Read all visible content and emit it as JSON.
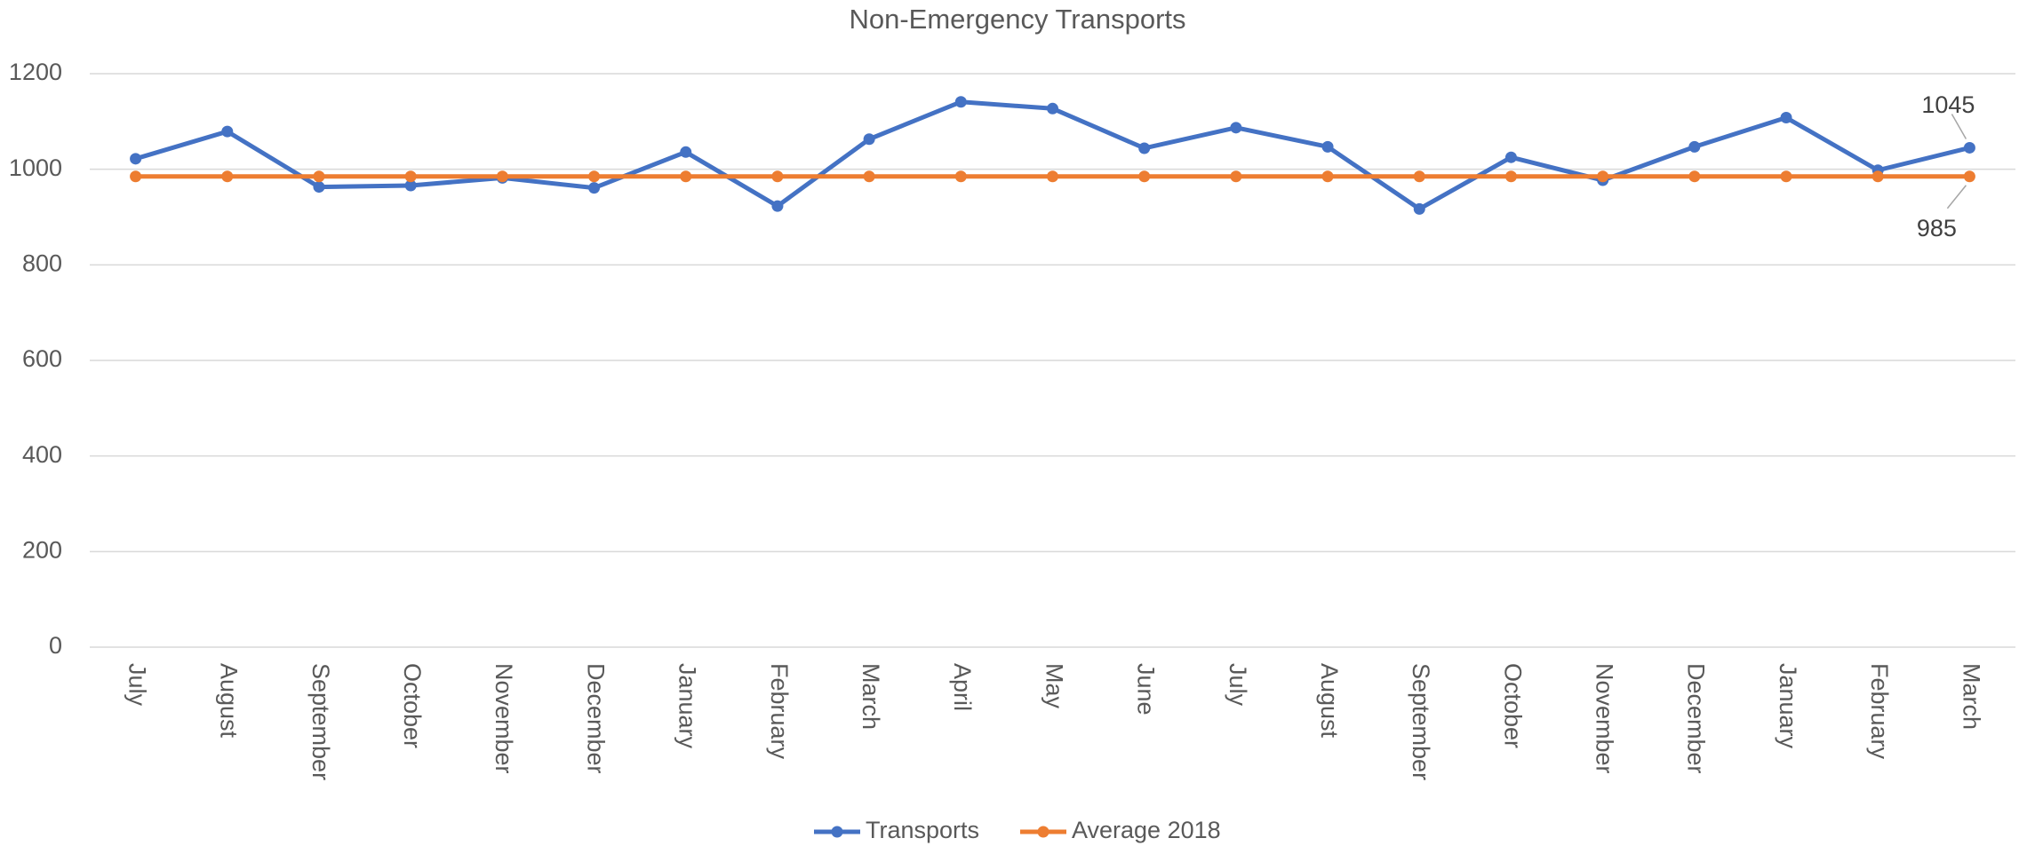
{
  "chart_data": {
    "type": "line",
    "title": "Non-Emergency Transports",
    "categories": [
      "July",
      "August",
      "September",
      "October",
      "November",
      "December",
      "January",
      "February",
      "March",
      "April",
      "May",
      "June",
      "July",
      "August",
      "September",
      "October",
      "November",
      "December",
      "January",
      "February",
      "March"
    ],
    "series": [
      {
        "name": "Transports",
        "color": "#4472c4",
        "values": [
          1022,
          1079,
          963,
          966,
          982,
          961,
          1036,
          923,
          1063,
          1141,
          1127,
          1044,
          1087,
          1047,
          917,
          1025,
          977,
          1047,
          1108,
          998,
          1045
        ]
      },
      {
        "name": "Average 2018",
        "color": "#ed7d31",
        "values": [
          985,
          985,
          985,
          985,
          985,
          985,
          985,
          985,
          985,
          985,
          985,
          985,
          985,
          985,
          985,
          985,
          985,
          985,
          985,
          985,
          985
        ]
      }
    ],
    "ylim": [
      0,
      1200
    ],
    "yticks": [
      0,
      200,
      400,
      600,
      800,
      1000,
      1200
    ],
    "grid": true,
    "legend": "bottom"
  }
}
